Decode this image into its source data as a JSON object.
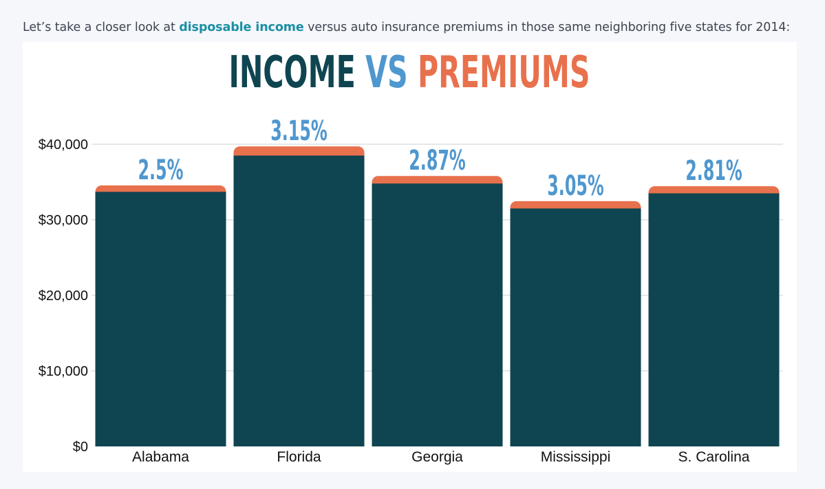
{
  "intro": {
    "before": "Let’s take a closer look at ",
    "link": "disposable income",
    "after": " versus auto insurance premiums in those same neighboring five states for 2014:"
  },
  "colors": {
    "income": "#0f4550",
    "vs": "#4f97cf",
    "premiums": "#e8714d",
    "grid": "#cfcfcf",
    "link": "#1a8fa3"
  },
  "chart_data": {
    "type": "bar",
    "title_parts": [
      "INCOME",
      "VS",
      "PREMIUMS"
    ],
    "categories": [
      "Alabama",
      "Florida",
      "Georgia",
      "Mississippi",
      "S. Carolina"
    ],
    "series": [
      {
        "name": "Disposable income",
        "values": [
          33700,
          38500,
          34800,
          31500,
          33500
        ]
      },
      {
        "name": "Auto insurance premium",
        "values": [
          843,
          1213,
          999,
          961,
          941
        ]
      }
    ],
    "labels": [
      "2.5%",
      "3.15%",
      "2.87%",
      "3.05%",
      "2.81%"
    ],
    "ylim": [
      0,
      40000
    ],
    "yticks": [
      0,
      10000,
      20000,
      30000,
      40000
    ],
    "ytick_labels": [
      "$0",
      "$10,000",
      "$20,000",
      "$30,000",
      "$40,000"
    ],
    "xlabel": "",
    "ylabel": ""
  }
}
